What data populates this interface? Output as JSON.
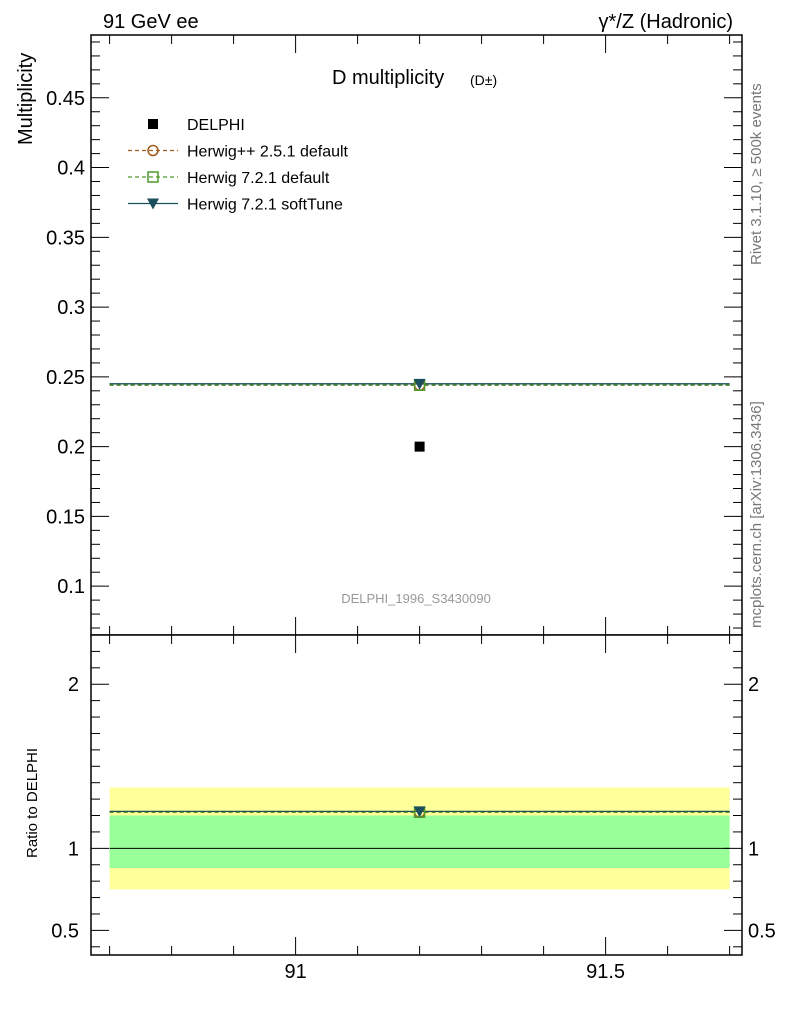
{
  "header": {
    "left": "91 GeV ee",
    "right": "γ*/Z (Hadronic)"
  },
  "side": {
    "rivet": "Rivet 3.1.10, ≥ 500k events",
    "mcplots": "mcplots.cern.ch [arXiv:1306.3436]"
  },
  "chart_data": {
    "type": "scatter",
    "title": "D multiplicity",
    "title_sub": "(D±)",
    "ylabel": "Multiplicity",
    "ratio_ylabel": "Ratio to DELPHI",
    "analysis_id": "DELPHI_1996_S3430090",
    "xlim": [
      90.67,
      91.72
    ],
    "ylim": [
      0.065,
      0.495
    ],
    "ratio_ylim": [
      0.35,
      2.3
    ],
    "x_bin": [
      90.7,
      91.7
    ],
    "x_ticks": [
      91,
      91.5
    ],
    "x_tick_labels": [
      "91",
      "91.5"
    ],
    "y_ticks": [
      0.1,
      0.15,
      0.2,
      0.25,
      0.3,
      0.35,
      0.4,
      0.45
    ],
    "y_tick_labels": [
      "0.1",
      "0.15",
      "0.2",
      "0.25",
      "0.3",
      "0.35",
      "0.4",
      "0.45"
    ],
    "ratio_ticks": [
      0.5,
      1,
      2
    ],
    "ratio_tick_labels": [
      "0.5",
      "1",
      "2"
    ],
    "ratio_band_inner": [
      0.88,
      1.2
    ],
    "ratio_band_outer": [
      0.75,
      1.37
    ],
    "legend_position": "top-left",
    "series": [
      {
        "name": "DELPHI",
        "x": 91.2,
        "y": 0.2,
        "ratio": 1.0,
        "color": "#000000",
        "style": "data",
        "marker": "square-filled"
      },
      {
        "name": "Herwig++ 2.5.1 default",
        "x": 91.2,
        "y": 0.244,
        "ratio": 1.22,
        "color": "#a05a1c",
        "style": "dashed",
        "marker": "circle-open"
      },
      {
        "name": "Herwig 7.2.1 default",
        "x": 91.2,
        "y": 0.244,
        "ratio": 1.22,
        "color": "#4f9a2a",
        "style": "dashed",
        "marker": "square-open"
      },
      {
        "name": "Herwig 7.2.1 softTune",
        "x": 91.2,
        "y": 0.245,
        "ratio": 1.225,
        "color": "#1b4f5e",
        "style": "solid",
        "marker": "triangle-down-filled"
      }
    ],
    "band_colors": {
      "inner": "#99ff99",
      "outer": "#ffff99"
    }
  }
}
